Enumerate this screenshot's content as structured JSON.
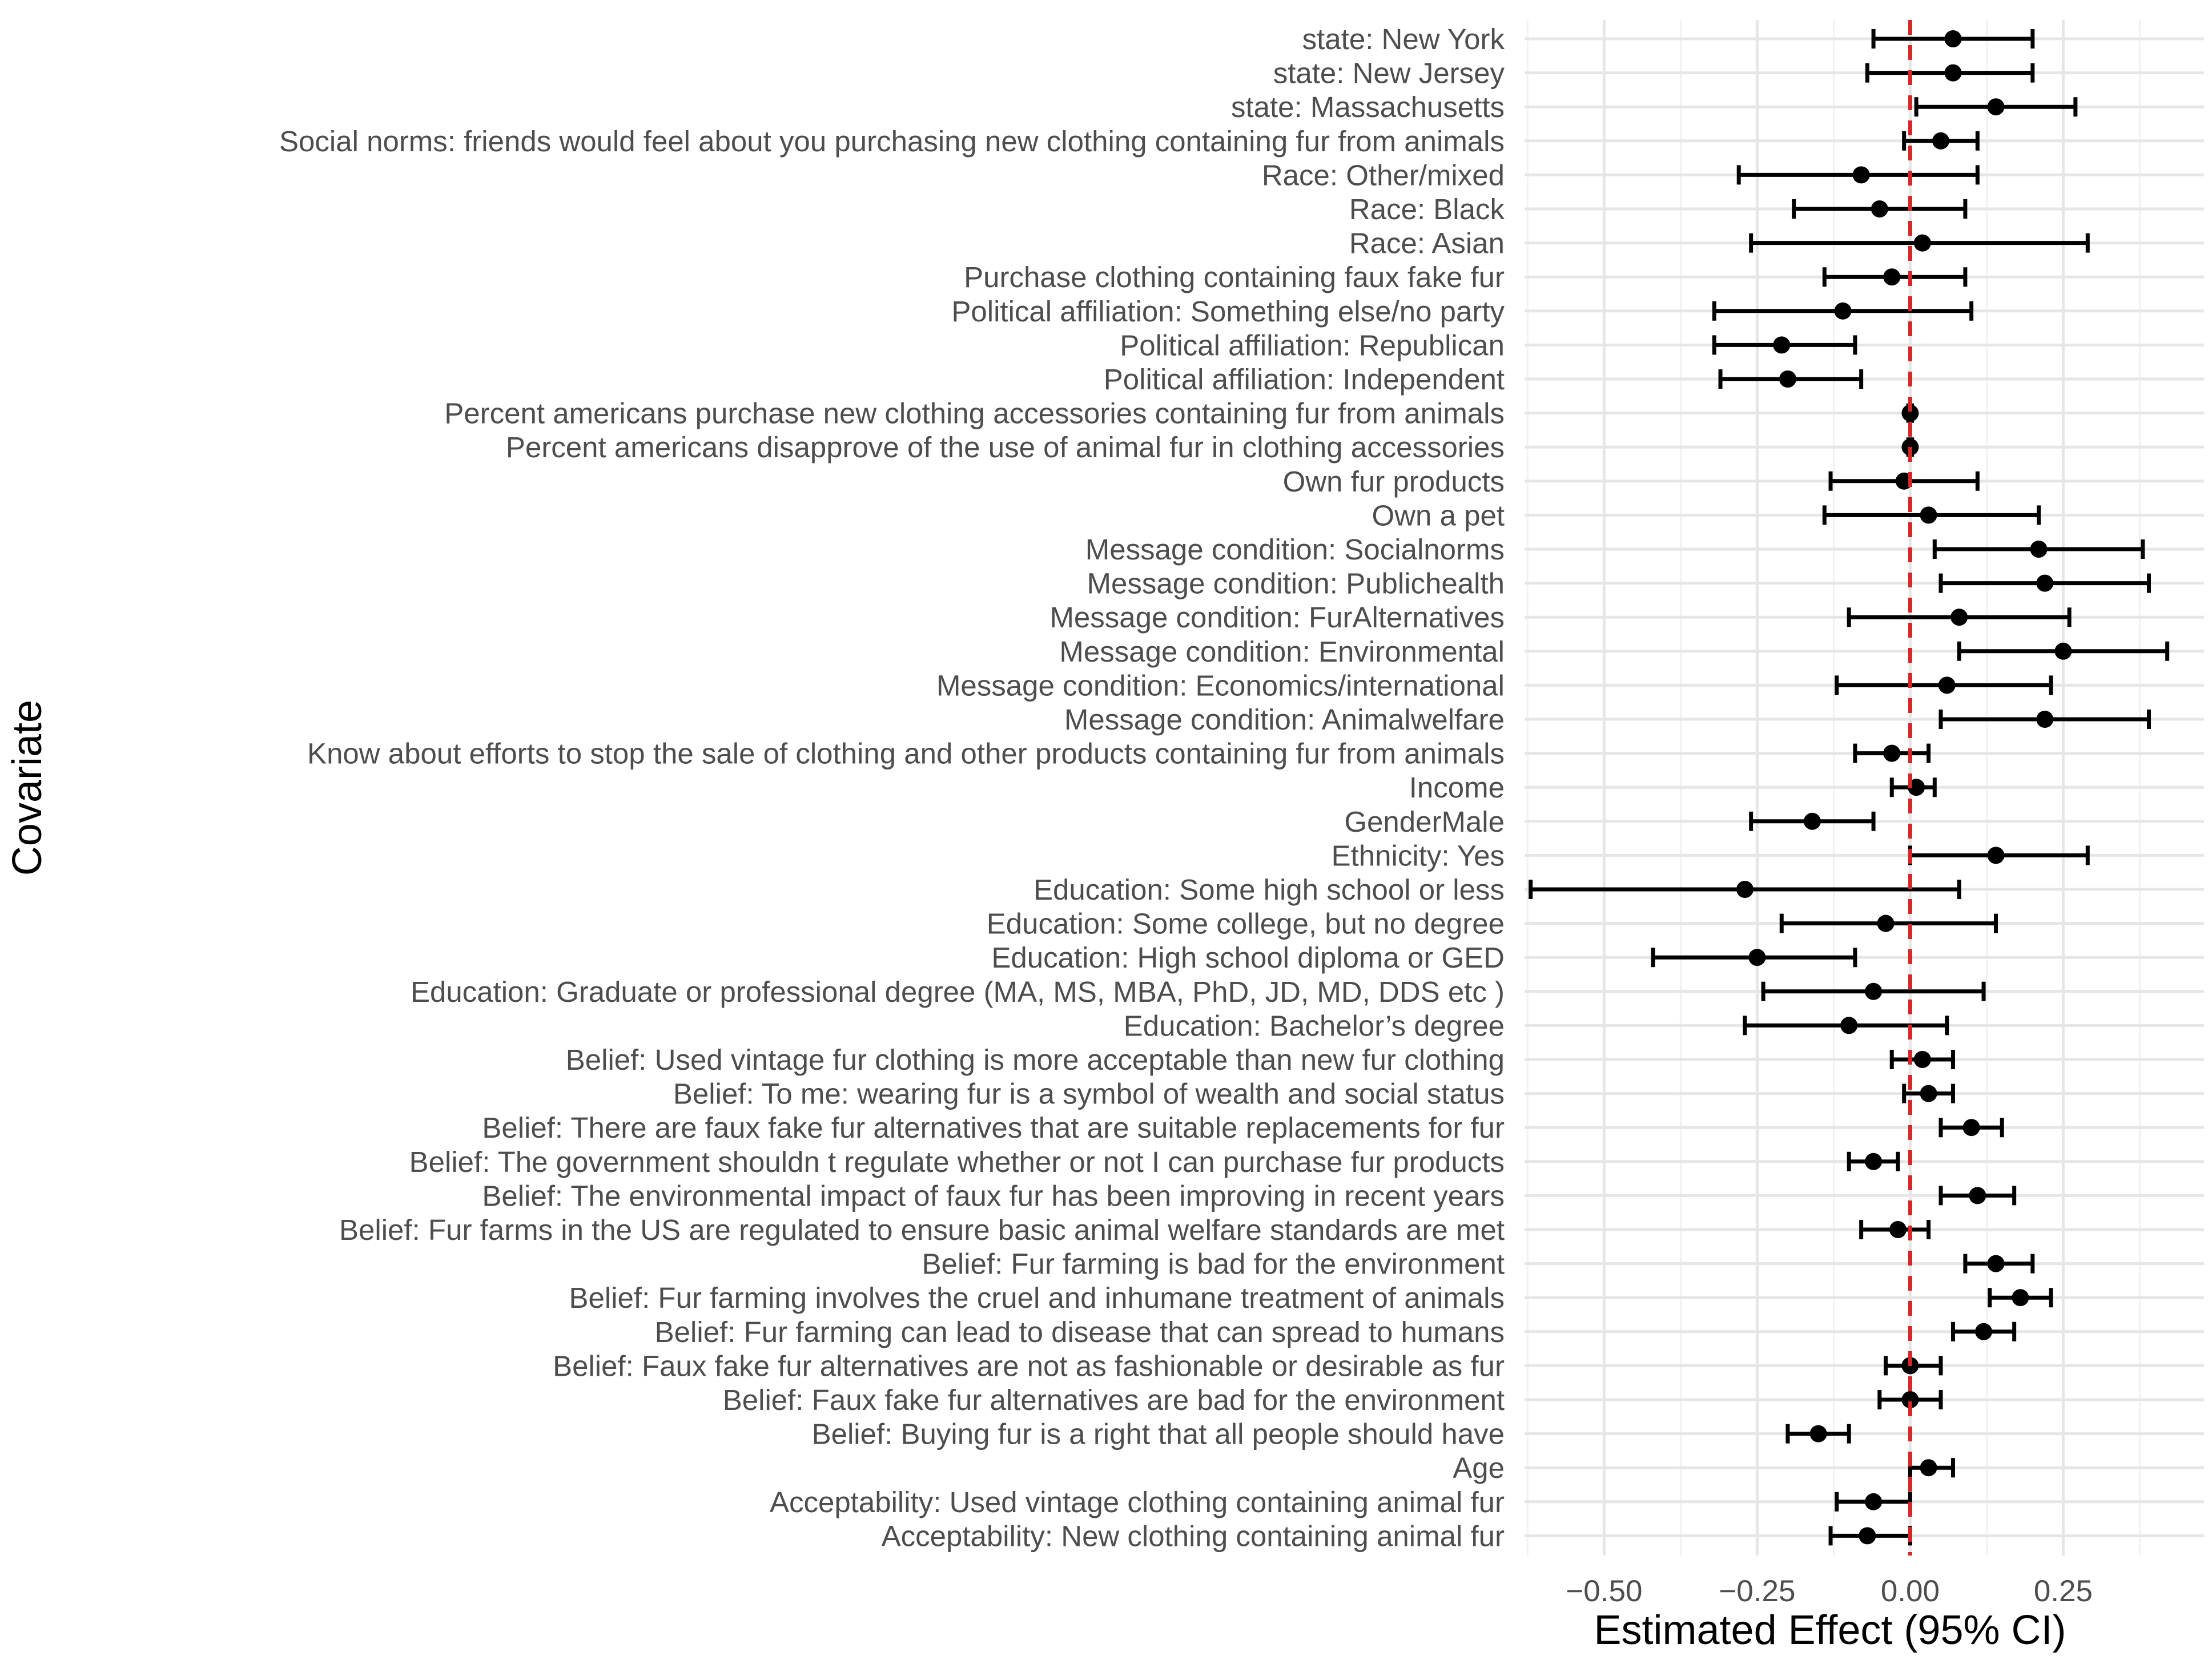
{
  "chart_data": {
    "type": "forest",
    "xlabel": "Estimated Effect (95% CI)",
    "ylabel": "Covariate",
    "xlim": [
      -0.63,
      0.48
    ],
    "xticks": [
      -0.5,
      -0.25,
      0.0,
      0.25
    ],
    "xtick_labels": [
      "−0.50",
      "−0.25",
      "0.00",
      "0.25"
    ],
    "reference_line": {
      "x": 0,
      "color": "#d62728",
      "style": "dashed"
    },
    "grid": true,
    "rows": [
      {
        "label": "state: New York",
        "estimate": 0.07,
        "lower": -0.06,
        "upper": 0.2
      },
      {
        "label": "state: New Jersey",
        "estimate": 0.07,
        "lower": -0.07,
        "upper": 0.2
      },
      {
        "label": "state: Massachusetts",
        "estimate": 0.14,
        "lower": 0.01,
        "upper": 0.27
      },
      {
        "label": "Social norms:  friends would feel about you purchasing new clothing containing fur from animals",
        "estimate": 0.05,
        "lower": -0.01,
        "upper": 0.11
      },
      {
        "label": "Race: Other/mixed",
        "estimate": -0.08,
        "lower": -0.28,
        "upper": 0.11
      },
      {
        "label": "Race: Black",
        "estimate": -0.05,
        "lower": -0.19,
        "upper": 0.09
      },
      {
        "label": "Race: Asian",
        "estimate": 0.02,
        "lower": -0.26,
        "upper": 0.29
      },
      {
        "label": "Purchase clothing containing faux fake fur",
        "estimate": -0.03,
        "lower": -0.14,
        "upper": 0.09
      },
      {
        "label": "Political affiliation: Something else/no party",
        "estimate": -0.11,
        "lower": -0.32,
        "upper": 0.1
      },
      {
        "label": "Political affiliation: Republican",
        "estimate": -0.21,
        "lower": -0.32,
        "upper": -0.09
      },
      {
        "label": "Political affiliation: Independent",
        "estimate": -0.2,
        "lower": -0.31,
        "upper": -0.08
      },
      {
        "label": "Percent americans purchase new clothing accessories containing fur from animals",
        "estimate": 0.0,
        "lower": -0.003,
        "upper": 0.003
      },
      {
        "label": "Percent americans disapprove of the use of animal fur in clothing accessories",
        "estimate": 0.0,
        "lower": -0.003,
        "upper": 0.003
      },
      {
        "label": "Own fur products ",
        "estimate": -0.01,
        "lower": -0.13,
        "upper": 0.11
      },
      {
        "label": "Own a pet",
        "estimate": 0.03,
        "lower": -0.14,
        "upper": 0.21
      },
      {
        "label": "Message condition: Socialnorms",
        "estimate": 0.21,
        "lower": 0.04,
        "upper": 0.38
      },
      {
        "label": "Message condition: Publichealth",
        "estimate": 0.22,
        "lower": 0.05,
        "upper": 0.39
      },
      {
        "label": "Message condition: FurAlternatives",
        "estimate": 0.08,
        "lower": -0.1,
        "upper": 0.26
      },
      {
        "label": "Message condition: Environmental",
        "estimate": 0.25,
        "lower": 0.08,
        "upper": 0.42
      },
      {
        "label": "Message condition: Economics/international",
        "estimate": 0.06,
        "lower": -0.12,
        "upper": 0.23
      },
      {
        "label": "Message condition: Animalwelfare",
        "estimate": 0.22,
        "lower": 0.05,
        "upper": 0.39
      },
      {
        "label": "Know about efforts to stop the sale of clothing and other products containing fur from animals ",
        "estimate": -0.03,
        "lower": -0.09,
        "upper": 0.03
      },
      {
        "label": "Income",
        "estimate": 0.01,
        "lower": -0.03,
        "upper": 0.04
      },
      {
        "label": "GenderMale",
        "estimate": -0.16,
        "lower": -0.26,
        "upper": -0.06
      },
      {
        "label": "Ethnicity: Yes",
        "estimate": 0.14,
        "lower": 0.0,
        "upper": 0.29
      },
      {
        "label": "Education: Some high school or less",
        "estimate": -0.27,
        "lower": -0.62,
        "upper": 0.08
      },
      {
        "label": "Education: Some college, but no degree",
        "estimate": -0.04,
        "lower": -0.21,
        "upper": 0.14
      },
      {
        "label": "Education: High school diploma or GED",
        "estimate": -0.25,
        "lower": -0.42,
        "upper": -0.09
      },
      {
        "label": "Education: Graduate or professional degree (MA, MS, MBA, PhD, JD, MD, DDS etc )",
        "estimate": -0.06,
        "lower": -0.24,
        "upper": 0.12
      },
      {
        "label": "Education: Bachelor’s degree",
        "estimate": -0.1,
        "lower": -0.27,
        "upper": 0.06
      },
      {
        "label": "Belief: Used vintage fur clothing is more acceptable than new fur clothing",
        "estimate": 0.02,
        "lower": -0.03,
        "upper": 0.07
      },
      {
        "label": "Belief: To me: wearing fur is a symbol of wealth and social status",
        "estimate": 0.03,
        "lower": -0.01,
        "upper": 0.07
      },
      {
        "label": "Belief: There are faux fake fur alternatives that are suitable replacements for fur",
        "estimate": 0.1,
        "lower": 0.05,
        "upper": 0.15
      },
      {
        "label": "Belief: The government shouldn t regulate whether or not I can purchase fur products",
        "estimate": -0.06,
        "lower": -0.1,
        "upper": -0.02
      },
      {
        "label": "Belief: The environmental impact of faux fur has been improving in recent years",
        "estimate": 0.11,
        "lower": 0.05,
        "upper": 0.17
      },
      {
        "label": "Belief: Fur farms in the US are regulated to ensure basic animal welfare standards are met",
        "estimate": -0.02,
        "lower": -0.08,
        "upper": 0.03
      },
      {
        "label": "Belief: Fur farming is bad for the environment",
        "estimate": 0.14,
        "lower": 0.09,
        "upper": 0.2
      },
      {
        "label": "Belief: Fur farming involves the cruel and inhumane treatment of animals",
        "estimate": 0.18,
        "lower": 0.13,
        "upper": 0.23
      },
      {
        "label": "Belief: Fur farming can lead to disease that can spread to humans",
        "estimate": 0.12,
        "lower": 0.07,
        "upper": 0.17
      },
      {
        "label": "Belief: Faux fake fur alternatives are not as fashionable or desirable as fur",
        "estimate": 0.0,
        "lower": -0.04,
        "upper": 0.05
      },
      {
        "label": "Belief: Faux fake fur alternatives are bad for the environment",
        "estimate": 0.0,
        "lower": -0.05,
        "upper": 0.05
      },
      {
        "label": "Belief: Buying fur is a right that all people should have",
        "estimate": -0.15,
        "lower": -0.2,
        "upper": -0.1
      },
      {
        "label": "Age",
        "estimate": 0.03,
        "lower": 0.0,
        "upper": 0.07
      },
      {
        "label": "Acceptability: Used vintage clothing containing animal fur",
        "estimate": -0.06,
        "lower": -0.12,
        "upper": 0.0
      },
      {
        "label": "Acceptability: New clothing containing animal fur",
        "estimate": -0.07,
        "lower": -0.13,
        "upper": 0.0
      }
    ]
  }
}
